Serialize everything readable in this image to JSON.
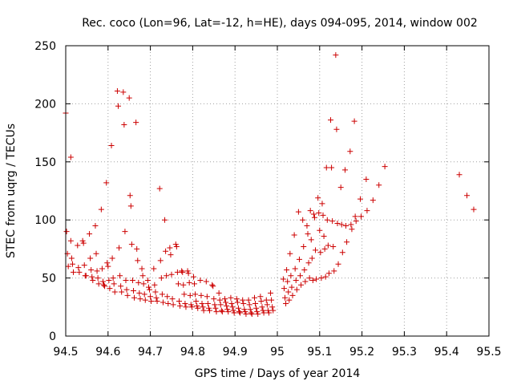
{
  "chart_data": {
    "type": "scatter",
    "title": "Rec. coco (Lon=96, Lat=-12, h=HE), days 094-095, 2014, window 002",
    "xlabel": "GPS time / Days of year 2014",
    "ylabel": "STEC from uqrg / TECUs",
    "xlim": [
      94.5,
      95.5
    ],
    "ylim": [
      0,
      250
    ],
    "xticks": [
      "94.5",
      "94.6",
      "94.7",
      "94.8",
      "94.9",
      "95",
      "95.1",
      "95.2",
      "95.3",
      "95.4",
      "95.5"
    ],
    "yticks": [
      "0",
      "50",
      "100",
      "150",
      "200",
      "250"
    ],
    "grid": true,
    "marker": "plus",
    "color": "#cc0000",
    "points": [
      [
        94.5,
        192
      ],
      [
        94.502,
        90
      ],
      [
        94.504,
        71
      ],
      [
        94.506,
        60
      ],
      [
        94.512,
        154
      ],
      [
        94.512,
        82
      ],
      [
        94.514,
        67
      ],
      [
        94.516,
        62
      ],
      [
        94.518,
        55
      ],
      [
        94.528,
        78
      ],
      [
        94.53,
        59
      ],
      [
        94.532,
        55
      ],
      [
        94.54,
        82
      ],
      [
        94.542,
        80
      ],
      [
        94.544,
        61
      ],
      [
        94.546,
        52
      ],
      [
        94.548,
        52
      ],
      [
        94.556,
        88
      ],
      [
        94.558,
        67
      ],
      [
        94.56,
        57
      ],
      [
        94.562,
        51
      ],
      [
        94.564,
        48
      ],
      [
        94.57,
        95
      ],
      [
        94.572,
        71
      ],
      [
        94.574,
        56
      ],
      [
        94.576,
        50
      ],
      [
        94.578,
        45
      ],
      [
        94.584,
        109
      ],
      [
        94.586,
        58
      ],
      [
        94.588,
        47
      ],
      [
        94.59,
        44
      ],
      [
        94.592,
        43
      ],
      [
        94.596,
        132
      ],
      [
        94.598,
        63
      ],
      [
        94.6,
        60
      ],
      [
        94.602,
        48
      ],
      [
        94.604,
        41
      ],
      [
        94.608,
        164
      ],
      [
        94.61,
        67
      ],
      [
        94.612,
        50
      ],
      [
        94.614,
        45
      ],
      [
        94.616,
        38
      ],
      [
        94.622,
        211
      ],
      [
        94.624,
        198
      ],
      [
        94.626,
        76
      ],
      [
        94.628,
        52
      ],
      [
        94.63,
        43
      ],
      [
        94.632,
        38
      ],
      [
        94.636,
        210
      ],
      [
        94.638,
        182
      ],
      [
        94.64,
        90
      ],
      [
        94.642,
        48
      ],
      [
        94.644,
        40
      ],
      [
        94.646,
        35
      ],
      [
        94.65,
        205
      ],
      [
        94.652,
        121
      ],
      [
        94.654,
        112
      ],
      [
        94.656,
        79
      ],
      [
        94.658,
        48
      ],
      [
        94.66,
        39
      ],
      [
        94.662,
        33
      ],
      [
        94.666,
        184
      ],
      [
        94.668,
        75
      ],
      [
        94.67,
        65
      ],
      [
        94.672,
        46
      ],
      [
        94.674,
        37
      ],
      [
        94.676,
        32
      ],
      [
        94.68,
        58
      ],
      [
        94.682,
        52
      ],
      [
        94.684,
        45
      ],
      [
        94.686,
        36
      ],
      [
        94.688,
        31
      ],
      [
        94.694,
        48
      ],
      [
        94.696,
        42
      ],
      [
        94.698,
        40
      ],
      [
        94.7,
        34
      ],
      [
        94.702,
        30
      ],
      [
        94.708,
        58
      ],
      [
        94.71,
        44
      ],
      [
        94.712,
        38
      ],
      [
        94.714,
        33
      ],
      [
        94.716,
        30
      ],
      [
        94.722,
        127
      ],
      [
        94.724,
        65
      ],
      [
        94.726,
        50
      ],
      [
        94.728,
        36
      ],
      [
        94.73,
        29
      ],
      [
        94.734,
        100
      ],
      [
        94.736,
        73
      ],
      [
        94.738,
        52
      ],
      [
        94.74,
        34
      ],
      [
        94.742,
        28
      ],
      [
        94.746,
        76
      ],
      [
        94.748,
        70
      ],
      [
        94.75,
        53
      ],
      [
        94.752,
        32
      ],
      [
        94.754,
        27
      ],
      [
        94.76,
        79
      ],
      [
        94.762,
        77
      ],
      [
        94.764,
        55
      ],
      [
        94.766,
        45
      ],
      [
        94.768,
        30
      ],
      [
        94.77,
        26
      ],
      [
        94.774,
        56
      ],
      [
        94.776,
        55
      ],
      [
        94.778,
        44
      ],
      [
        94.78,
        36
      ],
      [
        94.782,
        28
      ],
      [
        94.784,
        25
      ],
      [
        94.788,
        56
      ],
      [
        94.79,
        54
      ],
      [
        94.792,
        46
      ],
      [
        94.794,
        35
      ],
      [
        94.796,
        27
      ],
      [
        94.798,
        25
      ],
      [
        94.802,
        51
      ],
      [
        94.804,
        45
      ],
      [
        94.806,
        36
      ],
      [
        94.808,
        30
      ],
      [
        94.81,
        26
      ],
      [
        94.812,
        24
      ],
      [
        94.818,
        48
      ],
      [
        94.82,
        35
      ],
      [
        94.822,
        28
      ],
      [
        94.824,
        25
      ],
      [
        94.826,
        22
      ],
      [
        94.832,
        47
      ],
      [
        94.834,
        34
      ],
      [
        94.836,
        28
      ],
      [
        94.838,
        24
      ],
      [
        94.84,
        22
      ],
      [
        94.846,
        44
      ],
      [
        94.848,
        43
      ],
      [
        94.85,
        32
      ],
      [
        94.852,
        27
      ],
      [
        94.854,
        24
      ],
      [
        94.856,
        21
      ],
      [
        94.862,
        37
      ],
      [
        94.864,
        31
      ],
      [
        94.866,
        27
      ],
      [
        94.868,
        22
      ],
      [
        94.87,
        21
      ],
      [
        94.876,
        32
      ],
      [
        94.878,
        29
      ],
      [
        94.88,
        26
      ],
      [
        94.882,
        23
      ],
      [
        94.884,
        21
      ],
      [
        94.89,
        33
      ],
      [
        94.892,
        28
      ],
      [
        94.894,
        25
      ],
      [
        94.896,
        22
      ],
      [
        94.898,
        20
      ],
      [
        94.904,
        32
      ],
      [
        94.906,
        29
      ],
      [
        94.908,
        24
      ],
      [
        94.91,
        21
      ],
      [
        94.912,
        20
      ],
      [
        94.918,
        31
      ],
      [
        94.92,
        28
      ],
      [
        94.922,
        23
      ],
      [
        94.924,
        21
      ],
      [
        94.926,
        19
      ],
      [
        94.932,
        31
      ],
      [
        94.934,
        27
      ],
      [
        94.936,
        23
      ],
      [
        94.938,
        20
      ],
      [
        94.94,
        19
      ],
      [
        94.946,
        33
      ],
      [
        94.948,
        28
      ],
      [
        94.95,
        24
      ],
      [
        94.952,
        21
      ],
      [
        94.954,
        19
      ],
      [
        94.96,
        34
      ],
      [
        94.962,
        30
      ],
      [
        94.964,
        25
      ],
      [
        94.966,
        22
      ],
      [
        94.968,
        20
      ],
      [
        94.974,
        31
      ],
      [
        94.976,
        27
      ],
      [
        94.978,
        22
      ],
      [
        94.98,
        20
      ],
      [
        94.984,
        37
      ],
      [
        94.986,
        31
      ],
      [
        94.988,
        25
      ],
      [
        94.99,
        22
      ],
      [
        95.014,
        49
      ],
      [
        95.016,
        41
      ],
      [
        95.018,
        33
      ],
      [
        95.02,
        28
      ],
      [
        95.022,
        57
      ],
      [
        95.024,
        47
      ],
      [
        95.026,
        38
      ],
      [
        95.028,
        31
      ],
      [
        95.03,
        71
      ],
      [
        95.032,
        52
      ],
      [
        95.034,
        42
      ],
      [
        95.036,
        35
      ],
      [
        95.04,
        87
      ],
      [
        95.042,
        58
      ],
      [
        95.044,
        48
      ],
      [
        95.046,
        40
      ],
      [
        95.05,
        107
      ],
      [
        95.052,
        66
      ],
      [
        95.054,
        52
      ],
      [
        95.056,
        44
      ],
      [
        95.06,
        100
      ],
      [
        95.062,
        77
      ],
      [
        95.064,
        57
      ],
      [
        95.066,
        47
      ],
      [
        95.07,
        95
      ],
      [
        95.072,
        88
      ],
      [
        95.074,
        63
      ],
      [
        95.076,
        50
      ],
      [
        95.078,
        108
      ],
      [
        95.08,
        83
      ],
      [
        95.082,
        67
      ],
      [
        95.084,
        48
      ],
      [
        95.086,
        105
      ],
      [
        95.088,
        102
      ],
      [
        95.09,
        74
      ],
      [
        95.092,
        49
      ],
      [
        95.096,
        119
      ],
      [
        95.098,
        106
      ],
      [
        95.1,
        91
      ],
      [
        95.102,
        72
      ],
      [
        95.104,
        50
      ],
      [
        95.106,
        114
      ],
      [
        95.108,
        104
      ],
      [
        95.11,
        86
      ],
      [
        95.112,
        75
      ],
      [
        95.114,
        51
      ],
      [
        95.116,
        145
      ],
      [
        95.118,
        100
      ],
      [
        95.12,
        78
      ],
      [
        95.122,
        54
      ],
      [
        95.126,
        186
      ],
      [
        95.128,
        145
      ],
      [
        95.13,
        99
      ],
      [
        95.132,
        77
      ],
      [
        95.134,
        56
      ],
      [
        95.138,
        242
      ],
      [
        95.14,
        178
      ],
      [
        95.142,
        97
      ],
      [
        95.144,
        62
      ],
      [
        95.15,
        128
      ],
      [
        95.152,
        96
      ],
      [
        95.154,
        72
      ],
      [
        95.16,
        143
      ],
      [
        95.162,
        95
      ],
      [
        95.164,
        81
      ],
      [
        95.172,
        159
      ],
      [
        95.174,
        96
      ],
      [
        95.176,
        92
      ],
      [
        95.182,
        185
      ],
      [
        95.184,
        103
      ],
      [
        95.186,
        99
      ],
      [
        95.196,
        118
      ],
      [
        95.198,
        103
      ],
      [
        95.21,
        135
      ],
      [
        95.212,
        108
      ],
      [
        95.226,
        117
      ],
      [
        95.24,
        130
      ],
      [
        95.254,
        146
      ],
      [
        95.43,
        139
      ],
      [
        95.448,
        121
      ],
      [
        95.464,
        109
      ]
    ]
  }
}
